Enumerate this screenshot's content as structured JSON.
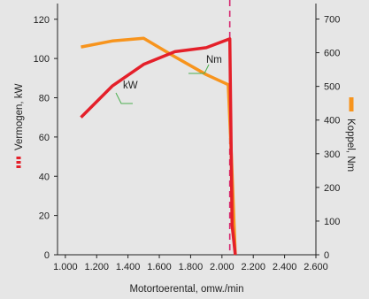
{
  "chart_data": {
    "type": "line",
    "xlabel": "Motortoerental, omw./min",
    "ylabel_left": "Vermogen, kW",
    "ylabel_right": "Koppel, Nm",
    "x_ticks": [
      "1.000",
      "1.200",
      "1.400",
      "1.600",
      "1.800",
      "2.000",
      "2.200",
      "2.400",
      "2.600"
    ],
    "y_left_ticks": [
      "0",
      "20",
      "40",
      "60",
      "80",
      "100",
      "120"
    ],
    "y_right_ticks": [
      "0",
      "100",
      "200",
      "300",
      "400",
      "500",
      "600",
      "700"
    ],
    "xlim": [
      950,
      2600
    ],
    "ylim_left": [
      0,
      128
    ],
    "ylim_right": [
      0,
      746
    ],
    "grid": false,
    "reference_line": {
      "x": 2050,
      "style": "dashed",
      "color": "#d6246e"
    },
    "series": [
      {
        "name": "kW",
        "axis": "left",
        "color": "#e4202a",
        "x": [
          1100,
          1300,
          1500,
          1700,
          1900,
          2050,
          2065,
          2085
        ],
        "y": [
          70,
          86,
          97,
          103.5,
          105.5,
          110,
          15,
          0
        ]
      },
      {
        "name": "Nm",
        "axis": "right",
        "color": "#f7941d",
        "x": [
          1100,
          1300,
          1500,
          1700,
          1900,
          2040,
          2060,
          2085
        ],
        "y": [
          617,
          635,
          643,
          588,
          535,
          505,
          300,
          0
        ]
      }
    ],
    "annotations": [
      {
        "text": "Nm",
        "series": "Nm"
      },
      {
        "text": "kW",
        "series": "kW"
      }
    ]
  }
}
